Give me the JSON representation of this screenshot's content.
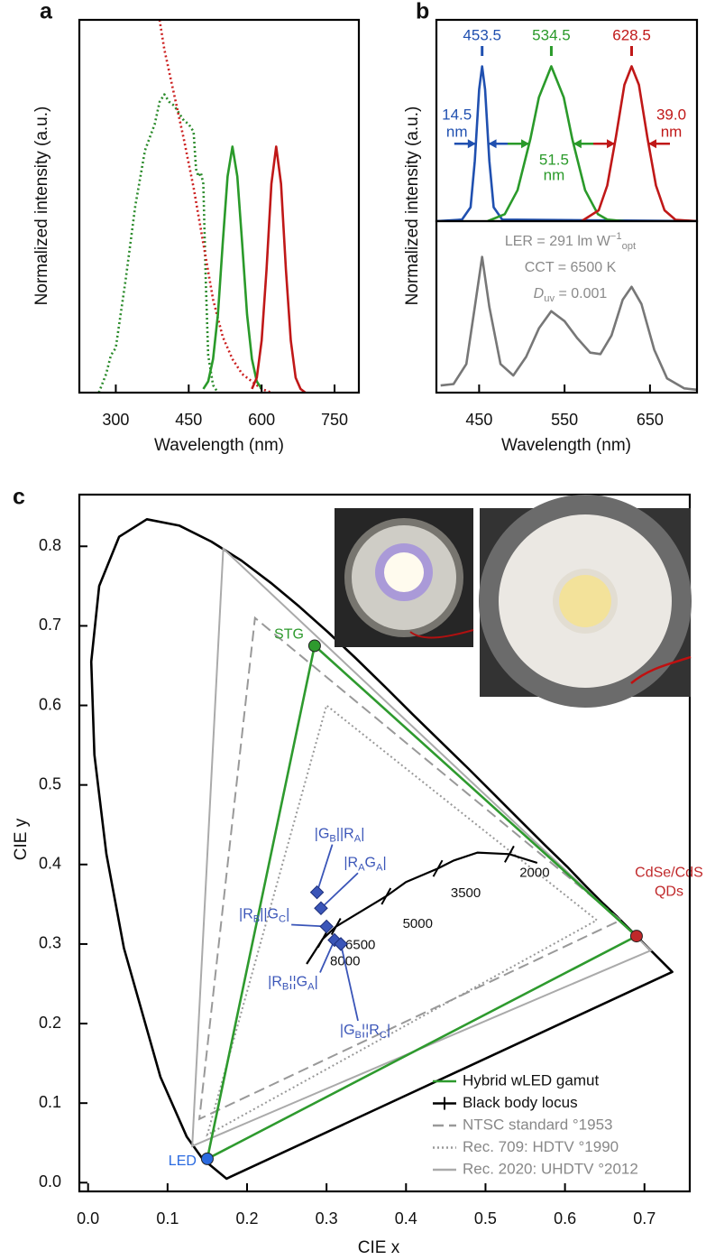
{
  "chart_data": [
    {
      "type": "line",
      "panel_label": "a",
      "x_label": "Wavelength (nm)",
      "y_label": "Normalized intensity (a.u.)",
      "xlim": [
        225,
        800
      ],
      "xticks": [
        300,
        450,
        600,
        750
      ],
      "ylim": [
        0,
        1
      ],
      "series": [
        {
          "color": "#2a8a2a",
          "style": "dotted",
          "x": [
            265,
            280,
            290,
            300,
            320,
            340,
            360,
            380,
            390,
            400,
            410,
            420,
            440,
            450,
            460,
            465,
            470,
            475,
            480,
            485,
            490,
            500,
            510
          ],
          "values": [
            0,
            0.05,
            0.1,
            0.12,
            0.3,
            0.5,
            0.65,
            0.72,
            0.78,
            0.8,
            0.78,
            0.77,
            0.73,
            0.72,
            0.7,
            0.6,
            0.58,
            0.59,
            0.56,
            0.3,
            0.1,
            0.02,
            0
          ]
        },
        {
          "color": "#cc2020",
          "style": "dotted",
          "x": [
            390,
            400,
            420,
            440,
            460,
            480,
            500,
            520,
            540,
            560,
            580,
            600,
            620
          ],
          "values": [
            1,
            0.92,
            0.8,
            0.68,
            0.55,
            0.4,
            0.25,
            0.15,
            0.09,
            0.05,
            0.03,
            0.01,
            0
          ]
        },
        {
          "color": "#2a9a2a",
          "style": "solid",
          "x": [
            480,
            490,
            500,
            510,
            520,
            530,
            540,
            550,
            560,
            570,
            580,
            590,
            600
          ],
          "values": [
            0.01,
            0.03,
            0.09,
            0.21,
            0.4,
            0.58,
            0.66,
            0.58,
            0.4,
            0.21,
            0.09,
            0.03,
            0.01
          ]
        },
        {
          "color": "#c01818",
          "style": "solid",
          "x": [
            580,
            590,
            600,
            610,
            620,
            630,
            640,
            650,
            660,
            670,
            680,
            690
          ],
          "values": [
            0.01,
            0.04,
            0.14,
            0.33,
            0.56,
            0.66,
            0.56,
            0.33,
            0.14,
            0.04,
            0.01,
            0
          ]
        }
      ]
    },
    {
      "type": "line",
      "panel_label": "b",
      "y_label": "Normalized intensity (a.u.)",
      "xlim": [
        400,
        705
      ],
      "ylim": [
        0,
        1.3
      ],
      "series": [
        {
          "color": "#2050b0",
          "style": "solid",
          "x": [
            400,
            430,
            440,
            445,
            450,
            453.5,
            457,
            462,
            467,
            477,
            705
          ],
          "values": [
            0,
            0.01,
            0.09,
            0.39,
            0.85,
            1,
            0.85,
            0.39,
            0.09,
            0.01,
            0
          ],
          "peak": 453.5,
          "fwhm": 14.5,
          "unit": "nm"
        },
        {
          "color": "#2a9a2a",
          "style": "solid",
          "x": [
            460,
            480,
            495,
            510,
            520,
            534.5,
            549,
            559,
            574,
            589,
            600,
            620
          ],
          "values": [
            0,
            0.045,
            0.2,
            0.53,
            0.8,
            1,
            0.8,
            0.53,
            0.2,
            0.045,
            0.01,
            0
          ],
          "peak": 534.5,
          "fwhm": 51.5,
          "unit": "nm"
        },
        {
          "color": "#c01818",
          "style": "solid",
          "x": [
            570,
            590,
            600,
            610,
            620,
            628.5,
            637,
            647,
            657,
            667,
            680,
            705
          ],
          "values": [
            0,
            0.07,
            0.23,
            0.54,
            0.88,
            1,
            0.88,
            0.54,
            0.23,
            0.07,
            0.008,
            0
          ],
          "peak": 628.5,
          "fwhm": {
            "value": 39,
            "label": "39.0"
          },
          "unit": "nm"
        }
      ]
    },
    {
      "type": "line",
      "x_label": "Wavelength (nm)",
      "xlim": [
        400,
        705
      ],
      "xticks": [
        450,
        550,
        650
      ],
      "ylim": [
        0,
        1.2
      ],
      "series": [
        {
          "color": "#777777",
          "style": "solid",
          "x": [
            405,
            420,
            435,
            445,
            453.5,
            462,
            475,
            490,
            505,
            520,
            534.5,
            550,
            565,
            580,
            592,
            605,
            618,
            628.5,
            640,
            655,
            670,
            690,
            705
          ],
          "values": [
            0.05,
            0.06,
            0.2,
            0.6,
            0.95,
            0.6,
            0.2,
            0.12,
            0.25,
            0.45,
            0.57,
            0.5,
            0.38,
            0.28,
            0.27,
            0.4,
            0.65,
            0.74,
            0.62,
            0.3,
            0.1,
            0.03,
            0.02
          ]
        }
      ],
      "annotations": [
        {
          "parts": [
            "LER = 291 lm W",
            "−1",
            "opt"
          ],
          "shift": [
            "",
            "sup",
            "sub"
          ]
        },
        {
          "parts": [
            "CCT = 6500 K"
          ],
          "shift": [
            ""
          ]
        },
        {
          "parts": [
            "D",
            "uv",
            " = 0.001"
          ],
          "shift": [
            "italic",
            "sub",
            ""
          ]
        }
      ]
    },
    {
      "type": "chromaticity",
      "panel_label": "c",
      "x_label": "CIE x",
      "y_label": "CIE y",
      "xlim": [
        -0.011,
        0.757
      ],
      "xticks": [
        {
          "value": 0,
          "label": "0.0"
        },
        0.1,
        0.2,
        0.3,
        0.4,
        0.5,
        0.6,
        0.7
      ],
      "ylim": [
        -0.011,
        0.865
      ],
      "yticks": [
        {
          "value": 0,
          "label": "0.0"
        },
        0.1,
        0.2,
        0.3,
        0.4,
        0.5,
        0.6,
        0.7,
        0.8
      ],
      "legend": "lower right",
      "locus": {
        "color": "#000000",
        "x": [
          0.1741,
          0.144,
          0.124,
          0.091,
          0.045,
          0.023,
          0.008,
          0.004,
          0.014,
          0.039,
          0.074,
          0.115,
          0.155,
          0.193,
          0.23,
          0.266,
          0.302,
          0.337,
          0.373,
          0.408,
          0.444,
          0.479,
          0.512,
          0.545,
          0.575,
          0.603,
          0.627,
          0.648,
          0.666,
          0.68,
          0.691,
          0.735
        ],
        "values": [
          0.005,
          0.03,
          0.058,
          0.133,
          0.295,
          0.413,
          0.538,
          0.655,
          0.75,
          0.812,
          0.834,
          0.826,
          0.806,
          0.782,
          0.754,
          0.724,
          0.692,
          0.659,
          0.624,
          0.589,
          0.554,
          0.52,
          0.487,
          0.454,
          0.424,
          0.397,
          0.372,
          0.351,
          0.334,
          0.32,
          0.309,
          0.265
        ]
      },
      "gamuts": [
        {
          "name": "Hybrid wLED gamut",
          "color": "#2e9a2e",
          "label_color": "#111111",
          "style": "solid",
          "x": [
            0.285,
            0.69,
            0.15
          ],
          "values": [
            0.675,
            0.31,
            0.03
          ]
        },
        {
          "name": "NTSC standard °1953",
          "color": "#999999",
          "label_color": "#888888",
          "style": "dashed",
          "x": [
            0.67,
            0.21,
            0.14
          ],
          "values": [
            0.33,
            0.71,
            0.08
          ]
        },
        {
          "name": "Rec. 709: HDTV °1990",
          "color": "#999999",
          "label_color": "#888888",
          "style": "dotted",
          "x": [
            0.64,
            0.3,
            0.15
          ],
          "values": [
            0.33,
            0.6,
            0.06
          ]
        },
        {
          "name": "Rec. 2020: UHDTV °2012",
          "color": "#aaaaaa",
          "label_color": "#888888",
          "style": "solid",
          "x": [
            0.708,
            0.17,
            0.131
          ],
          "values": [
            0.292,
            0.797,
            0.046
          ]
        }
      ],
      "blackbody": {
        "name": "Black body locus",
        "color": "#000000",
        "label_color": "#111111",
        "x": [
          0.565,
          0.53,
          0.49,
          0.46,
          0.44,
          0.4,
          0.375,
          0.345,
          0.312,
          0.295,
          0.275
        ],
        "values": [
          0.402,
          0.413,
          0.415,
          0.405,
          0.395,
          0.378,
          0.36,
          0.342,
          0.322,
          0.306,
          0.275
        ],
        "ticks": [
          {
            "temperature": 2000,
            "x": 0.53,
            "y": 0.413
          },
          {
            "temperature": 3500,
            "x": 0.44,
            "y": 0.395
          },
          {
            "temperature": 5000,
            "x": 0.375,
            "y": 0.36
          },
          {
            "temperature": 6500,
            "x": 0.312,
            "y": 0.322
          },
          {
            "temperature": 8000,
            "x": 0.295,
            "y": 0.306
          }
        ]
      },
      "samples": [
        {
          "x": 0.288,
          "y": 0.365,
          "label": {
            "parts": [
              "|G",
              "B",
              "||R",
              "A",
              "|"
            ],
            "shift": [
              "",
              "sub",
              "",
              "sub",
              ""
            ]
          }
        },
        {
          "x": 0.293,
          "y": 0.345,
          "label": {
            "parts": [
              "|R",
              "A",
              "G",
              "A",
              "|"
            ],
            "shift": [
              "",
              "sub",
              "",
              "sub",
              ""
            ]
          }
        },
        {
          "x": 0.3,
          "y": 0.322,
          "label": {
            "parts": [
              "|R",
              "B",
              "||G",
              "C",
              "|"
            ],
            "shift": [
              "",
              "sub",
              "",
              "sub",
              ""
            ]
          }
        },
        {
          "x": 0.31,
          "y": 0.305,
          "label": {
            "parts": [
              "|R",
              "B",
              "¦¦G",
              "A",
              "|"
            ],
            "shift": [
              "",
              "sub",
              "",
              "sub",
              ""
            ]
          }
        },
        {
          "x": 0.318,
          "y": 0.3,
          "label": {
            "parts": [
              "|G",
              "B",
              "¦¦R",
              "C",
              "|"
            ],
            "shift": [
              "",
              "sub",
              "",
              "sub",
              ""
            ]
          }
        }
      ],
      "sample_color": "#3a55b8",
      "points": [
        {
          "label": "STG",
          "color": "#2e9a2e",
          "x": 0.285,
          "y": 0.675
        },
        {
          "label": [
            "CdSe/CdS",
            "QDs"
          ],
          "color": "#c0282a",
          "x": 0.69,
          "y": 0.31
        },
        {
          "label": "LED",
          "color": "#2a6ae0",
          "x": 0.15,
          "y": 0.03
        }
      ]
    }
  ]
}
